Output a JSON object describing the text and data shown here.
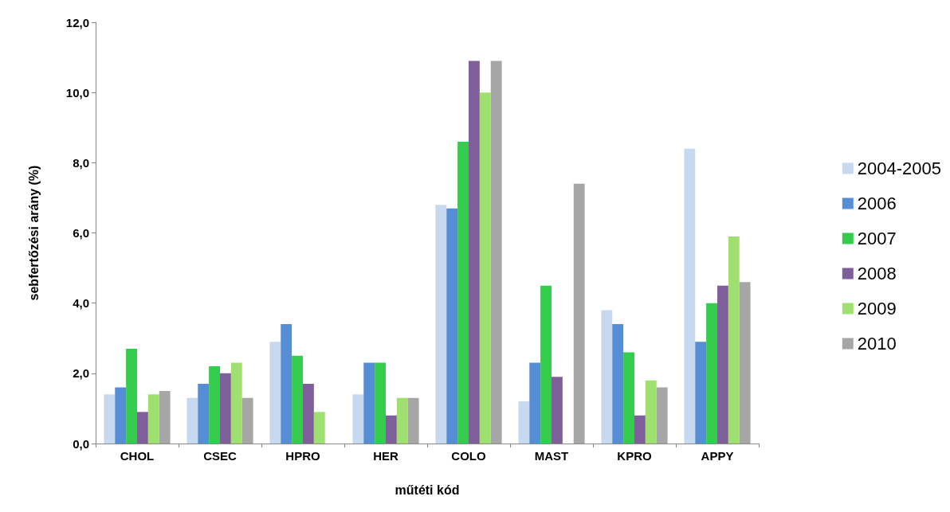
{
  "chart_data": {
    "type": "bar",
    "xlabel": "műtéti kód",
    "ylabel": "sebfertőzési arány (%)",
    "categories": [
      "CHOL",
      "CSEC",
      "HPRO",
      "HER",
      "COLO",
      "MAST",
      "KPRO",
      "APPY"
    ],
    "series": [
      {
        "name": "2004-2005",
        "color": "#c6d9f1",
        "values": [
          1.4,
          1.3,
          2.9,
          1.4,
          6.8,
          1.2,
          3.8,
          8.4
        ]
      },
      {
        "name": "2006",
        "color": "#558ed5",
        "values": [
          1.6,
          1.7,
          3.4,
          2.3,
          6.7,
          2.3,
          3.4,
          2.9
        ]
      },
      {
        "name": "2007",
        "color": "#33cc4c",
        "values": [
          2.7,
          2.2,
          2.5,
          2.3,
          8.6,
          4.5,
          2.6,
          4.0
        ]
      },
      {
        "name": "2008",
        "color": "#7f5f9a",
        "values": [
          0.9,
          2.0,
          1.7,
          0.8,
          10.9,
          1.9,
          0.8,
          4.5
        ]
      },
      {
        "name": "2009",
        "color": "#a0e070",
        "values": [
          1.4,
          2.3,
          0.9,
          1.3,
          10.0,
          null,
          1.8,
          5.9
        ]
      },
      {
        "name": "2010",
        "color": "#a6a6a6",
        "values": [
          1.5,
          1.3,
          null,
          1.3,
          10.9,
          7.4,
          1.6,
          4.6
        ]
      }
    ],
    "ylim": [
      0,
      12
    ],
    "yticks": [
      {
        "value": 0,
        "label": "0,0"
      },
      {
        "value": 2,
        "label": "2,0"
      },
      {
        "value": 4,
        "label": "4,0"
      },
      {
        "value": 6,
        "label": "6,0"
      },
      {
        "value": 8,
        "label": "8,0"
      },
      {
        "value": 10,
        "label": "10,0"
      },
      {
        "value": 12,
        "label": "12,0"
      }
    ],
    "grid": false,
    "legend": "right"
  }
}
